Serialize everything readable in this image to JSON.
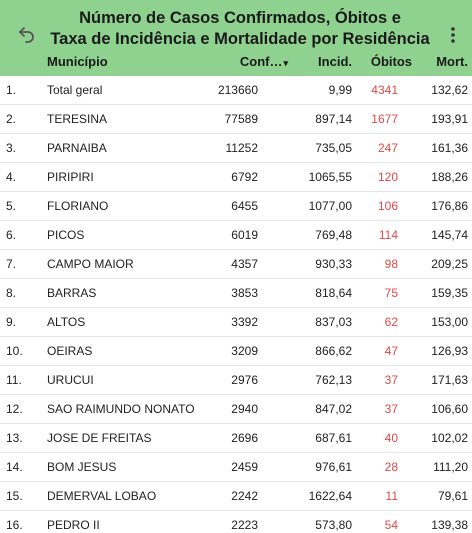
{
  "header": {
    "title_line1": "Número de Casos Confirmados, Óbitos e",
    "title_line2": "Taxa de Incidência e Mortalidade por Residência",
    "back_icon": "undo-arrow-icon",
    "more_icon": "kebab-menu-icon"
  },
  "columns": {
    "municipio": "Município",
    "confirmados": "Conf…",
    "sort_icon": "▾",
    "incidencia": "Incid.",
    "obitos": "Óbitos",
    "mortalidade": "Mort."
  },
  "colors": {
    "header_bg": "#8fd18f",
    "obitos_text": "#e04848"
  },
  "rows": [
    {
      "idx": "1.",
      "municipio": "Total geral",
      "conf": "213660",
      "incid": "9,99",
      "obitos": "4341",
      "mort": "132,62"
    },
    {
      "idx": "2.",
      "municipio": "TERESINA",
      "conf": "77589",
      "incid": "897,14",
      "obitos": "1677",
      "mort": "193,91"
    },
    {
      "idx": "3.",
      "municipio": "PARNAIBA",
      "conf": "11252",
      "incid": "735,05",
      "obitos": "247",
      "mort": "161,36"
    },
    {
      "idx": "4.",
      "municipio": "PIRIPIRI",
      "conf": "6792",
      "incid": "1065,55",
      "obitos": "120",
      "mort": "188,26"
    },
    {
      "idx": "5.",
      "municipio": "FLORIANO",
      "conf": "6455",
      "incid": "1077,00",
      "obitos": "106",
      "mort": "176,86"
    },
    {
      "idx": "6.",
      "municipio": "PICOS",
      "conf": "6019",
      "incid": "769,48",
      "obitos": "114",
      "mort": "145,74"
    },
    {
      "idx": "7.",
      "municipio": "CAMPO MAIOR",
      "conf": "4357",
      "incid": "930,33",
      "obitos": "98",
      "mort": "209,25"
    },
    {
      "idx": "8.",
      "municipio": "BARRAS",
      "conf": "3853",
      "incid": "818,64",
      "obitos": "75",
      "mort": "159,35"
    },
    {
      "idx": "9.",
      "municipio": "ALTOS",
      "conf": "3392",
      "incid": "837,03",
      "obitos": "62",
      "mort": "153,00"
    },
    {
      "idx": "10.",
      "municipio": "OEIRAS",
      "conf": "3209",
      "incid": "866,62",
      "obitos": "47",
      "mort": "126,93"
    },
    {
      "idx": "11.",
      "municipio": "URUCUI",
      "conf": "2976",
      "incid": "762,13",
      "obitos": "37",
      "mort": "171,63"
    },
    {
      "idx": "12.",
      "municipio": "SAO RAIMUNDO NONATO",
      "conf": "2940",
      "incid": "847,02",
      "obitos": "37",
      "mort": "106,60"
    },
    {
      "idx": "13.",
      "municipio": "JOSE DE FREITAS",
      "conf": "2696",
      "incid": "687,61",
      "obitos": "40",
      "mort": "102,02"
    },
    {
      "idx": "14.",
      "municipio": "BOM JESUS",
      "conf": "2459",
      "incid": "976,61",
      "obitos": "28",
      "mort": "111,20"
    },
    {
      "idx": "15.",
      "municipio": "DEMERVAL LOBAO",
      "conf": "2242",
      "incid": "1622,64",
      "obitos": "11",
      "mort": "79,61"
    },
    {
      "idx": "16.",
      "municipio": "PEDRO II",
      "conf": "2223",
      "incid": "573,80",
      "obitos": "54",
      "mort": "139,38"
    }
  ]
}
